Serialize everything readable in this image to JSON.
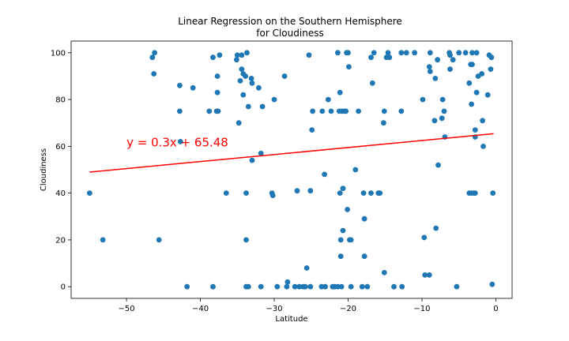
{
  "chart_data": {
    "type": "scatter",
    "title": [
      "Linear Regression on the Southern Hemisphere",
      "for Cloudiness"
    ],
    "xlabel": "Latitude",
    "ylabel": "Cloudiness",
    "xlim": [
      -57.5,
      2.2
    ],
    "ylim": [
      -5,
      105
    ],
    "xticks": [
      -50,
      -40,
      -30,
      -20,
      -10,
      0
    ],
    "yticks": [
      0,
      20,
      40,
      60,
      80,
      100
    ],
    "grid": false,
    "marker_color": "#1f77b4",
    "regression": {
      "equation": "y = 0.3x + 65.48",
      "slope": 0.3,
      "intercept": 65.48,
      "x_range": [
        -55,
        -0.3
      ],
      "color": "#ff0000"
    },
    "points": [
      [
        -55,
        40
      ],
      [
        -53.2,
        20
      ],
      [
        -46.5,
        98
      ],
      [
        -46.2,
        100
      ],
      [
        -46.3,
        91
      ],
      [
        -45.6,
        20
      ],
      [
        -42.8,
        75
      ],
      [
        -42.8,
        86
      ],
      [
        -42.7,
        62
      ],
      [
        -41.8,
        0
      ],
      [
        -41,
        85
      ],
      [
        -38.8,
        75
      ],
      [
        -38.3,
        98
      ],
      [
        -38.3,
        0
      ],
      [
        -37.8,
        75
      ],
      [
        -37.6,
        75
      ],
      [
        -37.7,
        90
      ],
      [
        -37.7,
        83
      ],
      [
        -37.4,
        99
      ],
      [
        -36.5,
        40
      ],
      [
        -35.1,
        97
      ],
      [
        -35,
        99
      ],
      [
        -34.8,
        70
      ],
      [
        -34.6,
        88
      ],
      [
        -34.4,
        99
      ],
      [
        -34.4,
        93
      ],
      [
        -34.2,
        82
      ],
      [
        -34.2,
        91
      ],
      [
        -33.9,
        90
      ],
      [
        -33.8,
        40
      ],
      [
        -33.8,
        20
      ],
      [
        -33.8,
        0
      ],
      [
        -33.5,
        0
      ],
      [
        -33.5,
        77
      ],
      [
        -33.7,
        100
      ],
      [
        -33.1,
        89
      ],
      [
        -33,
        87
      ],
      [
        -33,
        54
      ],
      [
        -32.1,
        85
      ],
      [
        -31.8,
        0
      ],
      [
        -31.8,
        57
      ],
      [
        -31.6,
        77
      ],
      [
        -30.3,
        40
      ],
      [
        -30.2,
        39
      ],
      [
        -30,
        80
      ],
      [
        -29.6,
        0
      ],
      [
        -28.6,
        90
      ],
      [
        -28.3,
        0
      ],
      [
        -28.2,
        2
      ],
      [
        -27.2,
        0
      ],
      [
        -26.9,
        41
      ],
      [
        -26.6,
        0
      ],
      [
        -26.1,
        0
      ],
      [
        -25.8,
        0
      ],
      [
        -25.6,
        8
      ],
      [
        -25.3,
        99
      ],
      [
        -25.1,
        41
      ],
      [
        -25.1,
        0
      ],
      [
        -24.9,
        67
      ],
      [
        -24.8,
        75
      ],
      [
        -23.6,
        0
      ],
      [
        -23.5,
        75
      ],
      [
        -23.2,
        48
      ],
      [
        -23.1,
        0
      ],
      [
        -22.7,
        80
      ],
      [
        -22.3,
        75
      ],
      [
        -22.1,
        0
      ],
      [
        -21.8,
        0
      ],
      [
        -21.4,
        0
      ],
      [
        -21.4,
        100
      ],
      [
        -21.2,
        75
      ],
      [
        -21.1,
        40
      ],
      [
        -21.1,
        83
      ],
      [
        -21,
        20
      ],
      [
        -21,
        13
      ],
      [
        -20.9,
        0
      ],
      [
        -20.8,
        75
      ],
      [
        -20.7,
        42
      ],
      [
        -20.7,
        24
      ],
      [
        -20.5,
        75
      ],
      [
        -20.3,
        75
      ],
      [
        -20.2,
        100
      ],
      [
        -20.1,
        33
      ],
      [
        -20,
        100
      ],
      [
        -19.9,
        94
      ],
      [
        -19.8,
        20
      ],
      [
        -19.6,
        20
      ],
      [
        -19.6,
        0
      ],
      [
        -19,
        50
      ],
      [
        -18.6,
        75
      ],
      [
        -18.1,
        0
      ],
      [
        -17.9,
        40
      ],
      [
        -17.8,
        13
      ],
      [
        -17.8,
        29
      ],
      [
        -17.4,
        0
      ],
      [
        -16.9,
        40
      ],
      [
        -16.9,
        98
      ],
      [
        -16.7,
        87
      ],
      [
        -16.5,
        100
      ],
      [
        -15.9,
        40
      ],
      [
        -15.7,
        40
      ],
      [
        -15.2,
        70
      ],
      [
        -15.1,
        6
      ],
      [
        -15.1,
        75
      ],
      [
        -14.8,
        98
      ],
      [
        -14.6,
        100
      ],
      [
        -14.4,
        98
      ],
      [
        -13.8,
        0
      ],
      [
        -12.8,
        100
      ],
      [
        -12.8,
        75
      ],
      [
        -12.7,
        0
      ],
      [
        -12.1,
        100
      ],
      [
        -11,
        100
      ],
      [
        -9.9,
        80
      ],
      [
        -9.7,
        21
      ],
      [
        -9.6,
        5
      ],
      [
        -9,
        5
      ],
      [
        -9,
        94
      ],
      [
        -8.9,
        92
      ],
      [
        -8.9,
        100
      ],
      [
        -8.3,
        71
      ],
      [
        -8.2,
        89
      ],
      [
        -8.1,
        25
      ],
      [
        -7.9,
        97
      ],
      [
        -7.8,
        52
      ],
      [
        -7.3,
        72
      ],
      [
        -7.2,
        80
      ],
      [
        -7,
        75
      ],
      [
        -6.9,
        64
      ],
      [
        -6.3,
        100
      ],
      [
        -6.2,
        93
      ],
      [
        -6.2,
        99
      ],
      [
        -5.8,
        97
      ],
      [
        -5.3,
        0
      ],
      [
        -5,
        100
      ],
      [
        -4.1,
        100
      ],
      [
        -3.6,
        40
      ],
      [
        -3.6,
        87
      ],
      [
        -3.4,
        95
      ],
      [
        -3.3,
        40
      ],
      [
        -3.3,
        78
      ],
      [
        -3.2,
        95
      ],
      [
        -3.2,
        100
      ],
      [
        -3,
        40
      ],
      [
        -2.8,
        40
      ],
      [
        -2.8,
        64
      ],
      [
        -2.8,
        67
      ],
      [
        -2.6,
        83
      ],
      [
        -2.6,
        100
      ],
      [
        -2.4,
        90
      ],
      [
        -1.9,
        91
      ],
      [
        -1.8,
        71
      ],
      [
        -1.7,
        60
      ],
      [
        -1.1,
        82
      ],
      [
        -0.9,
        99
      ],
      [
        -0.7,
        93
      ],
      [
        -0.6,
        98
      ],
      [
        -0.5,
        1
      ],
      [
        -0.4,
        40
      ]
    ]
  }
}
